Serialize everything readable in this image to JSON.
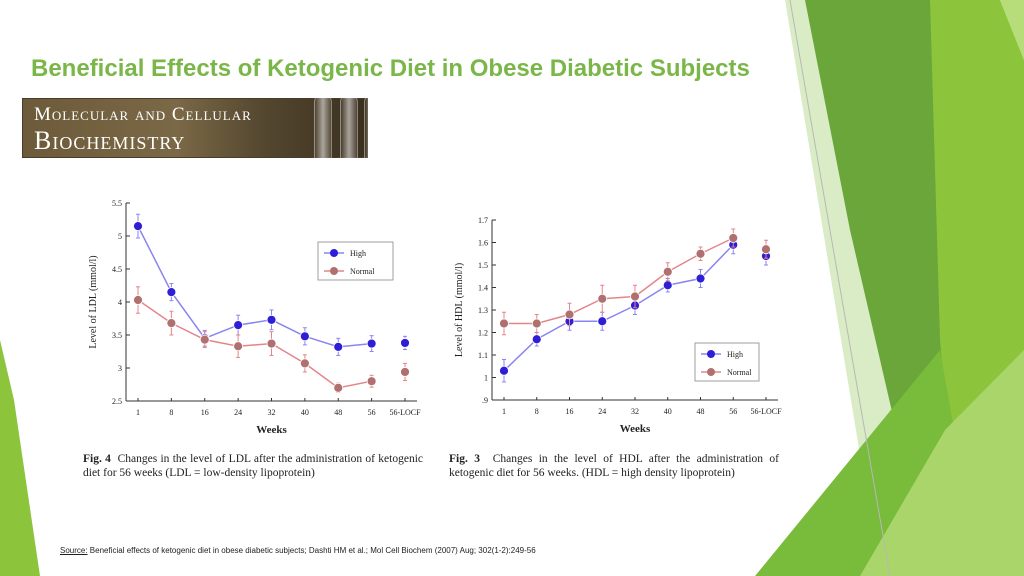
{
  "slide": {
    "title": "Beneficial Effects of Ketogenic Diet in Obese Diabetic Subjects",
    "journal_logo": {
      "line1": "Molecular and Cellular",
      "line2": "Biochemistry"
    },
    "source_label": "Source:",
    "source_text": " Beneficial effects of ketogenic diet in obese diabetic subjects; Dashti HM et al.; Mol Cell Biochem (2007) Aug; 302(1-2):249-56",
    "colors": {
      "title": "#7ab648",
      "deco_dark": "#5a9a32",
      "deco_mid": "#8cc43c",
      "deco_light": "#c9e4a8",
      "high_series": "#2e1fd6",
      "normal_series": "#b07070",
      "normal_line": "#e4858a",
      "high_line": "#8a85f0"
    }
  },
  "chart_data": [
    {
      "type": "line",
      "figure_label": "Fig. 4",
      "caption": "Changes in the level of LDL after the administration of ketogenic diet for 56 weeks (LDL = low-density lipoprotein)",
      "xlabel": "Weeks",
      "ylabel": "Level of LDL (mmol/l)",
      "categories": [
        "1",
        "8",
        "16",
        "24",
        "32",
        "40",
        "48",
        "56",
        "56-LOCF"
      ],
      "yticks": [
        "2.5",
        "3",
        "3.5",
        "4",
        "4.5",
        "5",
        "5.5"
      ],
      "ylim": [
        2.5,
        5.5
      ],
      "legend_position": "top-right",
      "series": [
        {
          "name": "High",
          "values": [
            5.15,
            4.15,
            3.45,
            3.65,
            3.73,
            3.48,
            3.32,
            3.37,
            3.38
          ],
          "errors": [
            0.18,
            0.13,
            0.12,
            0.15,
            0.15,
            0.13,
            0.13,
            0.12,
            0.1
          ]
        },
        {
          "name": "Normal",
          "values": [
            4.03,
            3.68,
            3.43,
            3.33,
            3.37,
            3.07,
            2.7,
            2.8,
            2.94
          ],
          "errors": [
            0.2,
            0.18,
            0.12,
            0.17,
            0.18,
            0.13,
            0.07,
            0.09,
            0.13
          ]
        }
      ]
    },
    {
      "type": "line",
      "figure_label": "Fig. 3",
      "caption": "Changes in the level of HDL after the administration of ketogenic diet for 56 weeks. (HDL = high density lipoprotein)",
      "xlabel": "Weeks",
      "ylabel": "Level of HDL (mmol/l)",
      "categories": [
        "1",
        "8",
        "16",
        "24",
        "32",
        "40",
        "48",
        "56",
        "56-LOCF"
      ],
      "yticks": [
        ".9",
        "1",
        "1.1",
        "1.2",
        "1.3",
        "1.4",
        "1.5",
        "1.6",
        "1.7"
      ],
      "ylim": [
        0.9,
        1.7
      ],
      "legend_position": "bottom-right",
      "series": [
        {
          "name": "High",
          "values": [
            1.03,
            1.17,
            1.25,
            1.25,
            1.32,
            1.41,
            1.44,
            1.59,
            1.54
          ],
          "errors": [
            0.05,
            0.03,
            0.04,
            0.04,
            0.04,
            0.03,
            0.04,
            0.04,
            0.04
          ]
        },
        {
          "name": "Normal",
          "values": [
            1.24,
            1.24,
            1.28,
            1.35,
            1.36,
            1.47,
            1.55,
            1.62,
            1.57
          ],
          "errors": [
            0.05,
            0.04,
            0.05,
            0.06,
            0.05,
            0.04,
            0.03,
            0.04,
            0.04
          ]
        }
      ]
    }
  ]
}
